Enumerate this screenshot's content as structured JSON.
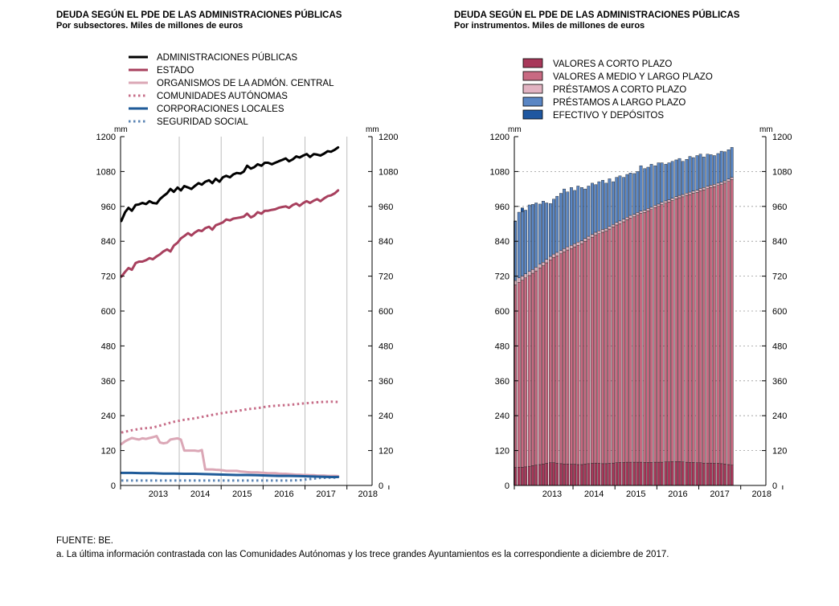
{
  "footer": {
    "source": "FUENTE: BE.",
    "note": "a. La última información contrastada con las Comunidades Autónomas y los trece grandes Ayuntamientos es la correspondiente a diciembre de 2017."
  },
  "chart_data": [
    {
      "type": "line",
      "title": "DEUDA SEGÚN EL PDE DE LAS ADMINISTRACIONES PÚBLICAS",
      "subtitle": "Por subsectores. Miles de millones de euros",
      "unit_label": "mm",
      "ylim": [
        0,
        1200
      ],
      "yticks": [
        0,
        120,
        240,
        360,
        480,
        600,
        720,
        840,
        960,
        1080,
        1200
      ],
      "xlim": [
        2012.6,
        2018.6
      ],
      "xticks": [
        "2013",
        "2014",
        "2015",
        "2016",
        "2017",
        "2018"
      ],
      "grid": "vertical",
      "legend_position": "top-left",
      "series": [
        {
          "name": "ADMINISTRACIONES PÚBLICAS",
          "color": "#000000",
          "style": "solid",
          "x": [
            2012.62,
            2012.71,
            2012.79,
            2012.87,
            2012.96,
            2013.04,
            2013.12,
            2013.21,
            2013.29,
            2013.37,
            2013.46,
            2013.54,
            2013.62,
            2013.71,
            2013.79,
            2013.87,
            2013.96,
            2014.04,
            2014.12,
            2014.21,
            2014.29,
            2014.37,
            2014.46,
            2014.54,
            2014.62,
            2014.71,
            2014.79,
            2014.87,
            2014.96,
            2015.04,
            2015.12,
            2015.21,
            2015.29,
            2015.37,
            2015.46,
            2015.54,
            2015.62,
            2015.71,
            2015.79,
            2015.87,
            2015.96,
            2016.04,
            2016.12,
            2016.21,
            2016.29,
            2016.37,
            2016.46,
            2016.54,
            2016.62,
            2016.71,
            2016.79,
            2016.87,
            2016.96,
            2017.04,
            2017.12,
            2017.21,
            2017.29,
            2017.37,
            2017.46,
            2017.54,
            2017.62,
            2017.71,
            2017.79
          ],
          "y": [
            910,
            940,
            955,
            945,
            965,
            967,
            972,
            968,
            978,
            972,
            970,
            985,
            995,
            1005,
            1020,
            1010,
            1025,
            1015,
            1030,
            1025,
            1020,
            1030,
            1040,
            1035,
            1045,
            1050,
            1040,
            1055,
            1045,
            1060,
            1065,
            1060,
            1070,
            1075,
            1073,
            1080,
            1100,
            1090,
            1095,
            1105,
            1100,
            1110,
            1110,
            1105,
            1110,
            1115,
            1120,
            1125,
            1115,
            1122,
            1132,
            1128,
            1135,
            1140,
            1130,
            1140,
            1138,
            1135,
            1142,
            1150,
            1148,
            1155,
            1163
          ]
        },
        {
          "name": "ESTADO",
          "color": "#a8405e",
          "style": "solid",
          "x": [
            2012.62,
            2012.71,
            2012.79,
            2012.87,
            2012.96,
            2013.04,
            2013.12,
            2013.21,
            2013.29,
            2013.37,
            2013.46,
            2013.54,
            2013.62,
            2013.71,
            2013.79,
            2013.87,
            2013.96,
            2014.04,
            2014.12,
            2014.21,
            2014.29,
            2014.37,
            2014.46,
            2014.54,
            2014.62,
            2014.71,
            2014.79,
            2014.87,
            2014.96,
            2015.04,
            2015.12,
            2015.21,
            2015.29,
            2015.37,
            2015.46,
            2015.54,
            2015.62,
            2015.71,
            2015.79,
            2015.87,
            2015.96,
            2016.04,
            2016.12,
            2016.21,
            2016.29,
            2016.37,
            2016.46,
            2016.54,
            2016.62,
            2016.71,
            2016.79,
            2016.87,
            2016.96,
            2017.04,
            2017.12,
            2017.21,
            2017.29,
            2017.37,
            2017.46,
            2017.54,
            2017.62,
            2017.71,
            2017.79
          ],
          "y": [
            718,
            735,
            748,
            742,
            765,
            770,
            770,
            775,
            782,
            778,
            788,
            795,
            805,
            812,
            805,
            825,
            835,
            850,
            858,
            868,
            860,
            870,
            878,
            875,
            885,
            890,
            880,
            895,
            900,
            905,
            915,
            912,
            918,
            920,
            922,
            925,
            935,
            922,
            928,
            940,
            935,
            945,
            945,
            948,
            950,
            955,
            958,
            960,
            955,
            965,
            970,
            962,
            972,
            978,
            972,
            980,
            985,
            978,
            988,
            995,
            998,
            1005,
            1015
          ]
        },
        {
          "name": "ORGANISMOS DE LA ADMÓN. CENTRAL",
          "color": "#dba7b6",
          "style": "solid",
          "x": [
            2012.62,
            2012.71,
            2012.79,
            2012.87,
            2012.96,
            2013.04,
            2013.12,
            2013.21,
            2013.29,
            2013.37,
            2013.46,
            2013.54,
            2013.62,
            2013.71,
            2013.79,
            2013.87,
            2013.96,
            2014.04,
            2014.12,
            2014.21,
            2014.29,
            2014.37,
            2014.46,
            2014.54,
            2014.62,
            2014.71,
            2014.79,
            2014.87,
            2014.96,
            2015.04,
            2015.12,
            2015.21,
            2015.29,
            2015.37,
            2015.46,
            2015.54,
            2015.62,
            2015.71,
            2015.79,
            2015.87,
            2015.96,
            2016.04,
            2016.12,
            2016.21,
            2016.29,
            2016.37,
            2016.46,
            2016.54,
            2016.62,
            2016.71,
            2016.79,
            2016.87,
            2016.96,
            2017.04,
            2017.12,
            2017.21,
            2017.29,
            2017.37,
            2017.46,
            2017.54,
            2017.62,
            2017.71,
            2017.79
          ],
          "y": [
            142,
            152,
            158,
            163,
            160,
            158,
            162,
            160,
            163,
            166,
            170,
            148,
            145,
            147,
            158,
            160,
            162,
            158,
            120,
            120,
            120,
            120,
            118,
            122,
            55,
            55,
            55,
            54,
            53,
            52,
            50,
            50,
            50,
            50,
            48,
            47,
            46,
            45,
            45,
            45,
            44,
            43,
            42,
            42,
            42,
            41,
            40,
            40,
            39,
            38,
            37,
            37,
            36,
            36,
            35,
            35,
            34,
            34,
            34,
            33,
            33,
            33,
            32
          ]
        },
        {
          "name": "COMUNIDADES AUTÓNOMAS",
          "color": "#c76d88",
          "style": "dotted",
          "x": [
            2012.62,
            2012.87,
            2013.12,
            2013.37,
            2013.62,
            2013.87,
            2014.12,
            2014.37,
            2014.62,
            2014.87,
            2015.12,
            2015.37,
            2015.62,
            2015.87,
            2016.12,
            2016.37,
            2016.62,
            2016.87,
            2017.12,
            2017.37,
            2017.62,
            2017.79
          ],
          "y": [
            182,
            190,
            196,
            199,
            209,
            219,
            226,
            231,
            238,
            245,
            251,
            256,
            262,
            266,
            272,
            275,
            277,
            281,
            284,
            287,
            288,
            287
          ]
        },
        {
          "name": "CORPORACIONES LOCALES",
          "color": "#1f5b99",
          "style": "solid",
          "x": [
            2012.62,
            2012.87,
            2013.12,
            2013.37,
            2013.62,
            2013.87,
            2014.12,
            2014.37,
            2014.62,
            2014.87,
            2015.12,
            2015.37,
            2015.62,
            2015.87,
            2016.12,
            2016.37,
            2016.62,
            2016.87,
            2017.12,
            2017.37,
            2017.62,
            2017.79
          ],
          "y": [
            43,
            43,
            42,
            42,
            41,
            41,
            40,
            40,
            39,
            38,
            37,
            36,
            36,
            35,
            34,
            33,
            33,
            32,
            31,
            30,
            29,
            29
          ]
        },
        {
          "name": "SEGURIDAD SOCIAL",
          "color": "#5d86b5",
          "style": "dotted",
          "x": [
            2012.62,
            2012.87,
            2013.12,
            2013.37,
            2013.62,
            2013.87,
            2014.12,
            2014.37,
            2014.62,
            2014.87,
            2015.12,
            2015.37,
            2015.62,
            2015.87,
            2016.12,
            2016.37,
            2016.62,
            2016.87,
            2017.12,
            2017.37,
            2017.62,
            2017.79
          ],
          "y": [
            17,
            17,
            17,
            17,
            17,
            17,
            17,
            17,
            17,
            17,
            17,
            17,
            17,
            17,
            17,
            17,
            17,
            18,
            22,
            26,
            27,
            27
          ]
        }
      ]
    },
    {
      "type": "bar",
      "stacked": true,
      "title": "DEUDA SEGÚN EL PDE DE LAS ADMINISTRACIONES PÚBLICAS",
      "subtitle": "Por instrumentos. Miles de millones de euros",
      "unit_label": "mm",
      "ylim": [
        0,
        1200
      ],
      "yticks": [
        0,
        120,
        240,
        360,
        480,
        600,
        720,
        840,
        960,
        1080,
        1200
      ],
      "xlim": [
        2012.6,
        2018.6
      ],
      "xticks": [
        "2013",
        "2014",
        "2015",
        "2016",
        "2017",
        "2018"
      ],
      "grid": "horizontal-dashed",
      "legend_position": "top-left",
      "x": [
        2012.62,
        2012.71,
        2012.79,
        2012.87,
        2012.96,
        2013.04,
        2013.12,
        2013.21,
        2013.29,
        2013.37,
        2013.46,
        2013.54,
        2013.62,
        2013.71,
        2013.79,
        2013.87,
        2013.96,
        2014.04,
        2014.12,
        2014.21,
        2014.29,
        2014.37,
        2014.46,
        2014.54,
        2014.62,
        2014.71,
        2014.79,
        2014.87,
        2014.96,
        2015.04,
        2015.12,
        2015.21,
        2015.29,
        2015.37,
        2015.46,
        2015.54,
        2015.62,
        2015.71,
        2015.79,
        2015.87,
        2015.96,
        2016.04,
        2016.12,
        2016.21,
        2016.29,
        2016.37,
        2016.46,
        2016.54,
        2016.62,
        2016.71,
        2016.79,
        2016.87,
        2016.96,
        2017.04,
        2017.12,
        2017.21,
        2017.29,
        2017.37,
        2017.46,
        2017.54,
        2017.62,
        2017.71,
        2017.79
      ],
      "series": [
        {
          "name": "VALORES A CORTO PLAZO",
          "color": "#a8385a",
          "values": [
            62,
            63,
            63,
            64,
            66,
            68,
            70,
            72,
            74,
            76,
            78,
            78,
            76,
            75,
            74,
            74,
            73,
            73,
            72,
            72,
            74,
            75,
            76,
            77,
            76,
            75,
            75,
            76,
            77,
            78,
            79,
            79,
            80,
            80,
            80,
            80,
            80,
            79,
            79,
            79,
            80,
            80,
            80,
            81,
            81,
            82,
            82,
            82,
            81,
            80,
            79,
            79,
            78,
            78,
            77,
            77,
            77,
            76,
            76,
            75,
            74,
            72,
            70
          ]
        },
        {
          "name": "VALORES A MEDIO Y LARGO PLAZO",
          "color": "#c86a82",
          "values": [
            628,
            636,
            643,
            650,
            656,
            662,
            668,
            676,
            682,
            690,
            698,
            706,
            714,
            722,
            730,
            736,
            742,
            748,
            754,
            760,
            766,
            772,
            778,
            784,
            790,
            796,
            800,
            806,
            812,
            818,
            822,
            828,
            834,
            840,
            844,
            850,
            856,
            860,
            866,
            870,
            876,
            880,
            886,
            890,
            894,
            898,
            904,
            908,
            912,
            918,
            922,
            926,
            930,
            936,
            940,
            944,
            948,
            952,
            956,
            960,
            966,
            974,
            982
          ]
        },
        {
          "name": "PRÉSTAMOS A CORTO PLAZO",
          "color": "#e2b3c2",
          "values": [
            15,
            15,
            14,
            14,
            14,
            13,
            13,
            13,
            12,
            12,
            12,
            12,
            12,
            11,
            11,
            11,
            11,
            11,
            11,
            10,
            10,
            10,
            10,
            10,
            10,
            10,
            9,
            9,
            9,
            9,
            9,
            9,
            9,
            9,
            9,
            9,
            8,
            8,
            8,
            8,
            8,
            8,
            8,
            8,
            8,
            8,
            8,
            8,
            8,
            8,
            8,
            8,
            8,
            8,
            8,
            8,
            8,
            8,
            8,
            8,
            8,
            8,
            8
          ]
        },
        {
          "name": "PRÉSTAMOS A LARGO PLAZO",
          "color": "#5a86c4",
          "values": [
            203,
            226,
            222,
            219,
            229,
            224,
            221,
            207,
            210,
            194,
            182,
            189,
            193,
            197,
            205,
            189,
            199,
            183,
            193,
            183,
            170,
            173,
            176,
            164,
            169,
            169,
            156,
            164,
            147,
            155,
            155,
            144,
            147,
            146,
            140,
            141,
            156,
            143,
            142,
            148,
            136,
            142,
            136,
            126,
            127,
            127,
            126,
            127,
            114,
            116,
            123,
            115,
            119,
            118,
            105,
            111,
            105,
            99,
            102,
            107,
            100,
            101,
            103
          ]
        },
        {
          "name": "EFECTIVO Y DEPÓSITOS",
          "color": "#1f57a0",
          "values": [
            2,
            0,
            13,
            0,
            0,
            0,
            0,
            0,
            0,
            0,
            0,
            0,
            0,
            0,
            0,
            0,
            0,
            0,
            0,
            0,
            0,
            0,
            0,
            0,
            0,
            0,
            0,
            0,
            0,
            0,
            0,
            0,
            0,
            0,
            0,
            0,
            0,
            0,
            0,
            0,
            0,
            0,
            0,
            0,
            0,
            0,
            0,
            0,
            0,
            0,
            0,
            0,
            0,
            0,
            0,
            0,
            0,
            0,
            0,
            0,
            0,
            0,
            0
          ]
        }
      ]
    }
  ]
}
